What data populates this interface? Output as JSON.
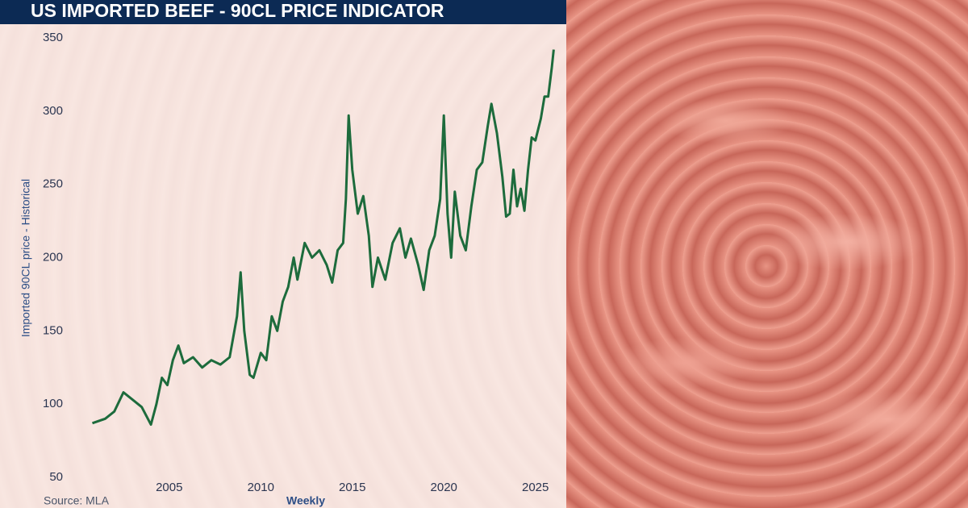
{
  "chart_data": {
    "type": "line",
    "title": "US IMPORTED BEEF - 90CL PRICE INDICATOR",
    "y_label": "Imported 90CL price - Historical",
    "source": "Source: MLA",
    "frequency": "Weekly",
    "x": [
      2000.8,
      2001.5,
      2002.0,
      2002.5,
      2003.0,
      2003.5,
      2004.0,
      2004.3,
      2004.6,
      2004.9,
      2005.2,
      2005.5,
      2005.8,
      2006.3,
      2006.8,
      2007.3,
      2007.8,
      2008.3,
      2008.7,
      2008.9,
      2009.1,
      2009.4,
      2009.6,
      2010.0,
      2010.3,
      2010.6,
      2010.9,
      2011.2,
      2011.5,
      2011.8,
      2012.0,
      2012.4,
      2012.8,
      2013.2,
      2013.6,
      2013.9,
      2014.2,
      2014.5,
      2014.65,
      2014.8,
      2015.0,
      2015.3,
      2015.6,
      2015.9,
      2016.1,
      2016.4,
      2016.8,
      2017.2,
      2017.6,
      2017.9,
      2018.2,
      2018.6,
      2018.9,
      2019.2,
      2019.5,
      2019.8,
      2020.0,
      2020.2,
      2020.4,
      2020.6,
      2020.9,
      2021.2,
      2021.5,
      2021.8,
      2022.1,
      2022.4,
      2022.6,
      2022.9,
      2023.2,
      2023.4,
      2023.6,
      2023.8,
      2024.0,
      2024.2,
      2024.4,
      2024.6,
      2024.8,
      2025.0,
      2025.3,
      2025.5,
      2025.7,
      2025.9,
      2026.0
    ],
    "series": [
      {
        "name": "Imported 90CL price",
        "color": "#1d6b3c",
        "values": [
          87,
          90,
          95,
          108,
          103,
          98,
          86,
          100,
          118,
          113,
          130,
          140,
          128,
          132,
          125,
          130,
          127,
          132,
          160,
          190,
          150,
          120,
          118,
          135,
          130,
          160,
          150,
          170,
          180,
          200,
          185,
          210,
          200,
          205,
          195,
          183,
          205,
          210,
          240,
          297,
          260,
          230,
          242,
          215,
          180,
          200,
          185,
          210,
          220,
          200,
          213,
          195,
          178,
          205,
          215,
          240,
          297,
          230,
          200,
          245,
          215,
          205,
          235,
          260,
          265,
          290,
          305,
          285,
          255,
          228,
          230,
          260,
          235,
          247,
          232,
          260,
          282,
          280,
          295,
          310,
          310,
          330,
          342
        ]
      }
    ],
    "xlim": [
      1998.4,
      2026.6
    ],
    "xticks": [
      2005,
      2010,
      2015,
      2020,
      2025
    ],
    "ylim": [
      50,
      350
    ],
    "yticks": [
      50,
      100,
      150,
      200,
      250,
      300,
      350
    ]
  }
}
